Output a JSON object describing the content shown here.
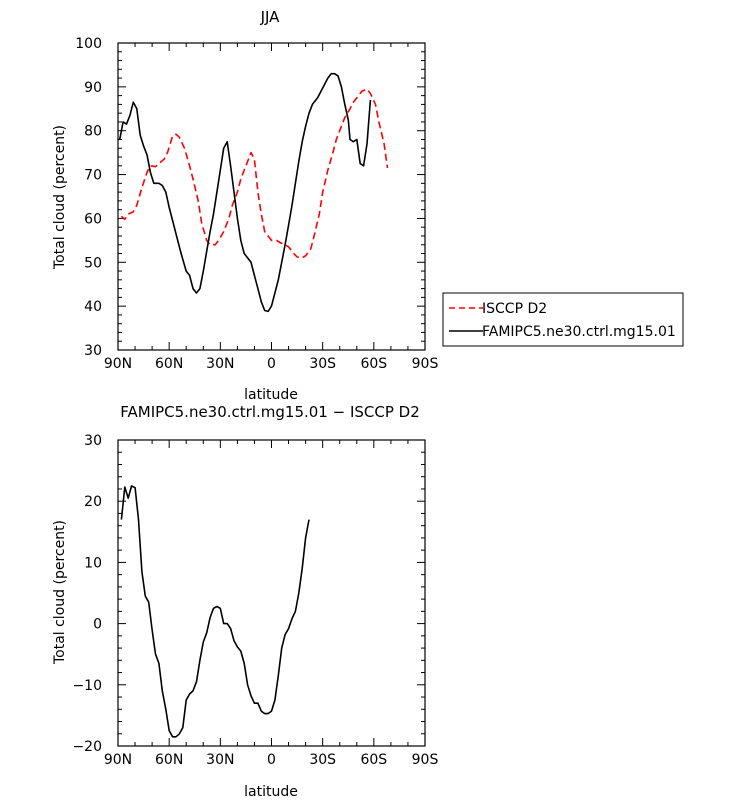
{
  "chart_data": [
    {
      "type": "line",
      "title": "JJA",
      "xlabel": "latitude",
      "ylabel": "Total cloud (percent)",
      "xlim": [
        90,
        -90
      ],
      "ylim": [
        30,
        100
      ],
      "xticks": [
        90,
        60,
        30,
        0,
        -30,
        -60,
        -90
      ],
      "xtick_labels": [
        "90N",
        "60N",
        "30N",
        "0",
        "30S",
        "60S",
        "90S"
      ],
      "yticks": [
        30,
        40,
        50,
        60,
        70,
        80,
        90,
        100
      ],
      "ytick_labels": [
        "30",
        "40",
        "50",
        "60",
        "70",
        "80",
        "90",
        "100"
      ],
      "legend_position": "right",
      "series": [
        {
          "name": "ISCCP D2",
          "color": "#ff0000",
          "dash": "dashed",
          "points": [
            [
              88,
              60.5
            ],
            [
              86,
              59.8
            ],
            [
              84,
              61
            ],
            [
              81,
              61.5
            ],
            [
              79,
              63
            ],
            [
              76,
              67
            ],
            [
              73,
              70.5
            ],
            [
              71,
              72
            ],
            [
              68,
              71.8
            ],
            [
              66,
              72.5
            ],
            [
              63,
              73.5
            ],
            [
              61,
              75
            ],
            [
              58,
              78.8
            ],
            [
              56,
              79.2
            ],
            [
              54,
              78.5
            ],
            [
              51,
              76
            ],
            [
              48,
              72
            ],
            [
              46,
              69
            ],
            [
              43,
              64
            ],
            [
              41,
              59
            ],
            [
              38,
              55
            ],
            [
              36,
              54
            ],
            [
              33,
              54
            ],
            [
              31,
              55
            ],
            [
              28,
              57
            ],
            [
              25,
              60
            ],
            [
              23,
              63
            ],
            [
              20,
              66
            ],
            [
              18,
              69
            ],
            [
              15,
              72
            ],
            [
              12,
              75
            ],
            [
              10,
              73.5
            ],
            [
              8,
              66
            ],
            [
              6,
              61
            ],
            [
              4,
              57
            ],
            [
              2,
              56
            ],
            [
              0,
              55
            ],
            [
              -3,
              55
            ],
            [
              -5,
              54.5
            ],
            [
              -8,
              54
            ],
            [
              -10,
              53.5
            ],
            [
              -13,
              52
            ],
            [
              -15,
              51.2
            ],
            [
              -18,
              51
            ],
            [
              -20,
              51.5
            ],
            [
              -23,
              53
            ],
            [
              -25,
              56
            ],
            [
              -28,
              61
            ],
            [
              -30,
              66
            ],
            [
              -33,
              71
            ],
            [
              -36,
              75
            ],
            [
              -38,
              78
            ],
            [
              -41,
              81
            ],
            [
              -43,
              83
            ],
            [
              -46,
              85
            ],
            [
              -48,
              86.5
            ],
            [
              -51,
              88
            ],
            [
              -53,
              89
            ],
            [
              -56,
              89.5
            ],
            [
              -58,
              88.5
            ],
            [
              -61,
              86
            ],
            [
              -63,
              82
            ],
            [
              -66,
              77
            ],
            [
              -68,
              71.5
            ]
          ]
        },
        {
          "name": "FAMIPC5.ne30.ctrl.mg15.01",
          "color": "#000000",
          "dash": "solid",
          "points": [
            [
              89,
              78
            ],
            [
              87,
              82
            ],
            [
              85,
              81.5
            ],
            [
              83,
              83.5
            ],
            [
              81,
              86.5
            ],
            [
              79,
              85
            ],
            [
              77,
              79
            ],
            [
              75,
              76.5
            ],
            [
              73,
              74.5
            ],
            [
              71,
              70.5
            ],
            [
              69,
              68
            ],
            [
              66,
              68
            ],
            [
              64,
              67.5
            ],
            [
              62,
              66
            ],
            [
              60,
              62.5
            ],
            [
              57,
              58
            ],
            [
              55,
              55
            ],
            [
              53,
              52
            ],
            [
              50,
              48
            ],
            [
              48,
              47
            ],
            [
              46,
              44
            ],
            [
              44,
              43
            ],
            [
              42,
              44
            ],
            [
              40,
              48
            ],
            [
              38,
              52.5
            ],
            [
              36,
              57
            ],
            [
              34,
              61
            ],
            [
              32,
              66
            ],
            [
              30,
              71
            ],
            [
              28,
              76
            ],
            [
              26,
              77.5
            ],
            [
              24,
              72
            ],
            [
              22,
              66
            ],
            [
              20,
              60
            ],
            [
              18,
              55
            ],
            [
              16,
              52
            ],
            [
              14,
              51
            ],
            [
              12,
              50
            ],
            [
              10,
              47
            ],
            [
              8,
              44
            ],
            [
              6,
              41
            ],
            [
              4,
              39
            ],
            [
              2,
              38.8
            ],
            [
              0,
              40
            ],
            [
              -2,
              43
            ],
            [
              -4,
              46
            ],
            [
              -6,
              50
            ],
            [
              -8,
              54
            ],
            [
              -10,
              58.5
            ],
            [
              -12,
              63
            ],
            [
              -14,
              68
            ],
            [
              -16,
              73
            ],
            [
              -18,
              77.5
            ],
            [
              -20,
              81
            ],
            [
              -22,
              84
            ],
            [
              -24,
              86
            ],
            [
              -27,
              87.5
            ],
            [
              -29,
              89
            ],
            [
              -31,
              90.5
            ],
            [
              -33,
              92
            ],
            [
              -35,
              93
            ],
            [
              -37,
              93
            ],
            [
              -39,
              92.5
            ],
            [
              -41,
              90
            ],
            [
              -43,
              86
            ],
            [
              -45,
              82.5
            ],
            [
              -46,
              78
            ],
            [
              -48,
              77.5
            ],
            [
              -50,
              78
            ],
            [
              -52,
              72.5
            ],
            [
              -54,
              72
            ],
            [
              -56,
              77
            ],
            [
              -58,
              87
            ]
          ]
        }
      ]
    },
    {
      "type": "line",
      "title": "FAMIPC5.ne30.ctrl.mg15.01 − ISCCP D2",
      "xlabel": "latitude",
      "ylabel": "Total cloud (percent)",
      "xlim": [
        90,
        -90
      ],
      "ylim": [
        -20,
        30
      ],
      "xticks": [
        90,
        60,
        30,
        0,
        -30,
        -60,
        -90
      ],
      "xtick_labels": [
        "90N",
        "60N",
        "30N",
        "0",
        "30S",
        "60S",
        "90S"
      ],
      "yticks": [
        -20,
        -10,
        0,
        10,
        20,
        30
      ],
      "ytick_labels": [
        "−20",
        "−10",
        "0",
        "10",
        "20",
        "30"
      ],
      "series": [
        {
          "color": "#000000",
          "dash": "solid",
          "points": [
            [
              88,
              17
            ],
            [
              86,
              22.3
            ],
            [
              84,
              20.5
            ],
            [
              82,
              22.5
            ],
            [
              80,
              22.2
            ],
            [
              78,
              17
            ],
            [
              76,
              8.5
            ],
            [
              74,
              4.5
            ],
            [
              72,
              3.5
            ],
            [
              70,
              -1
            ],
            [
              68,
              -5
            ],
            [
              66,
              -6.5
            ],
            [
              64,
              -11
            ],
            [
              62,
              -14
            ],
            [
              60,
              -17.5
            ],
            [
              58,
              -18.5
            ],
            [
              56,
              -18.5
            ],
            [
              54,
              -18
            ],
            [
              52,
              -17
            ],
            [
              50,
              -12.5
            ],
            [
              48,
              -11.5
            ],
            [
              46,
              -11
            ],
            [
              44,
              -9.5
            ],
            [
              42,
              -6
            ],
            [
              40,
              -3
            ],
            [
              38,
              -1.5
            ],
            [
              36,
              1
            ],
            [
              34,
              2.5
            ],
            [
              32,
              2.8
            ],
            [
              30,
              2.5
            ],
            [
              28,
              0
            ],
            [
              26,
              0
            ],
            [
              24,
              -0.8
            ],
            [
              22,
              -2.8
            ],
            [
              20,
              -3.8
            ],
            [
              18,
              -4.5
            ],
            [
              16,
              -6.5
            ],
            [
              14,
              -10
            ],
            [
              12,
              -11.8
            ],
            [
              10,
              -13
            ],
            [
              8,
              -13
            ],
            [
              6,
              -14.3
            ],
            [
              4,
              -14.7
            ],
            [
              2,
              -14.7
            ],
            [
              0,
              -14.3
            ],
            [
              -2,
              -12.5
            ],
            [
              -4,
              -8.5
            ],
            [
              -6,
              -4
            ],
            [
              -8,
              -1.8
            ],
            [
              -10,
              -0.8
            ],
            [
              -12,
              0.8
            ],
            [
              -14,
              2
            ],
            [
              -16,
              5
            ],
            [
              -18,
              9
            ],
            [
              -20,
              14
            ],
            [
              -22,
              17
            ]
          ]
        }
      ]
    }
  ]
}
